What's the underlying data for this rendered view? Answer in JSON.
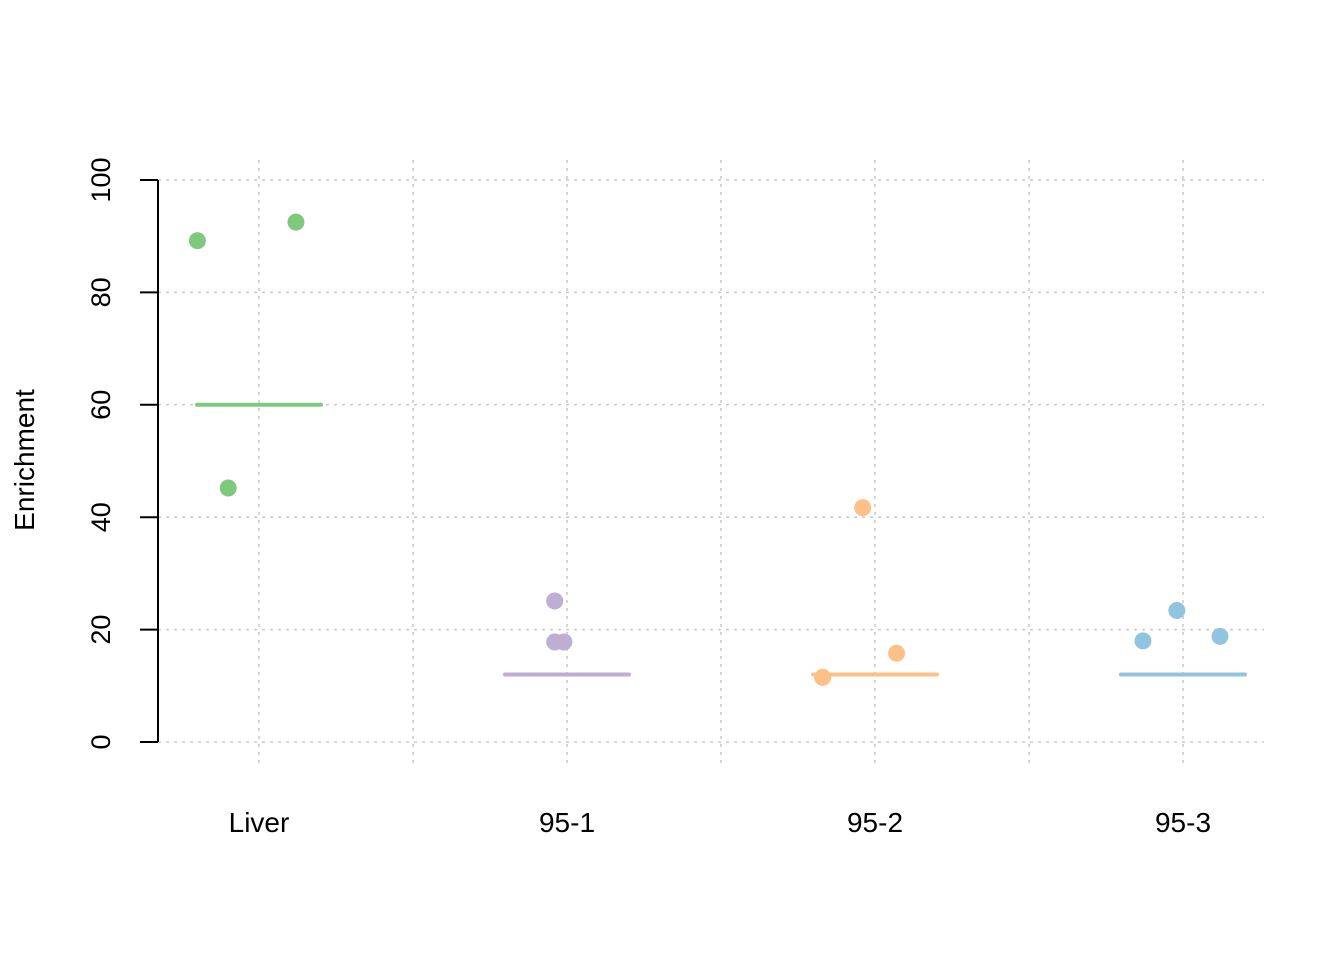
{
  "chart_data": {
    "type": "scatter",
    "ylabel": "Enrichment",
    "xlabel": "",
    "title": "",
    "ylim": [
      0,
      100
    ],
    "yticks": [
      0,
      20,
      40,
      60,
      80,
      100
    ],
    "grid": true,
    "categories": [
      "Liver",
      "95-1",
      "95-2",
      "95-3"
    ],
    "series": [
      {
        "category": "Liver",
        "color": "#7fc97f",
        "points": [
          {
            "x": -0.2,
            "y": 89.2
          },
          {
            "x": 0.12,
            "y": 92.5
          },
          {
            "x": -0.1,
            "y": 45.2
          }
        ],
        "reference_line": 60
      },
      {
        "category": "95-1",
        "color": "#beaed4",
        "points": [
          {
            "x": -0.04,
            "y": 17.8
          },
          {
            "x": -0.01,
            "y": 17.8
          },
          {
            "x": -0.04,
            "y": 25.1
          }
        ],
        "reference_line": 12
      },
      {
        "category": "95-2",
        "color": "#fdc086",
        "points": [
          {
            "x": -0.17,
            "y": 11.5
          },
          {
            "x": -0.04,
            "y": 41.7
          },
          {
            "x": 0.07,
            "y": 15.8
          }
        ],
        "reference_line": 12
      },
      {
        "category": "95-3",
        "color": "#91c4de",
        "points": [
          {
            "x": -0.13,
            "y": 18.0
          },
          {
            "x": -0.02,
            "y": 23.4
          },
          {
            "x": 0.12,
            "y": 18.8
          }
        ],
        "reference_line": 12
      }
    ]
  }
}
